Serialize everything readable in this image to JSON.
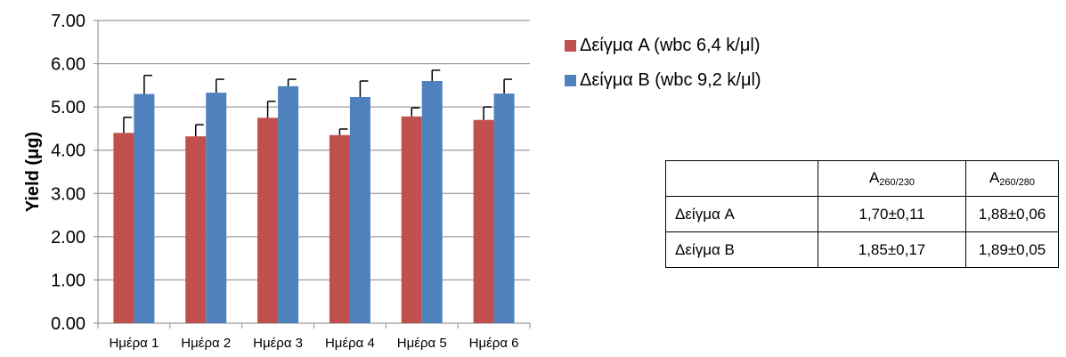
{
  "chart_data": {
    "type": "bar",
    "categories": [
      "Ημέρα 1",
      "Ημέρα 2",
      "Ημέρα 3",
      "Ημέρα 4",
      "Ημέρα 5",
      "Ημέρα 6"
    ],
    "series": [
      {
        "name": "Δείγμα A (wbc 6,4 k/μl)",
        "color": "#c0504d",
        "values": [
          4.4,
          4.32,
          4.75,
          4.35,
          4.78,
          4.7
        ],
        "errors": [
          0.36,
          0.27,
          0.38,
          0.14,
          0.2,
          0.3
        ]
      },
      {
        "name": "Δείγμα B (wbc 9,2 k/μl)",
        "color": "#4f81bd",
        "values": [
          5.3,
          5.33,
          5.48,
          5.23,
          5.6,
          5.31
        ],
        "errors": [
          0.43,
          0.31,
          0.16,
          0.37,
          0.25,
          0.33
        ]
      }
    ],
    "ylabel": "Yield (μg)",
    "xlabel": "",
    "ylim": [
      0,
      7
    ],
    "yticks": [
      "0.00",
      "1.00",
      "2.00",
      "3.00",
      "4.00",
      "5.00",
      "6.00",
      "7.00"
    ],
    "grid": true,
    "legend_position": "right"
  },
  "table": {
    "header": {
      "col1": "",
      "col2_main": "A",
      "col2_sub": "260/230",
      "col3_main": "A",
      "col3_sub": "260/280"
    },
    "rows": [
      {
        "label": "Δείγμα A",
        "v1": "1,70±0,11",
        "v2": "1,88±0,06"
      },
      {
        "label": "Δείγμα B",
        "v1": "1,85±0,17",
        "v2": "1,89±0,05"
      }
    ]
  }
}
